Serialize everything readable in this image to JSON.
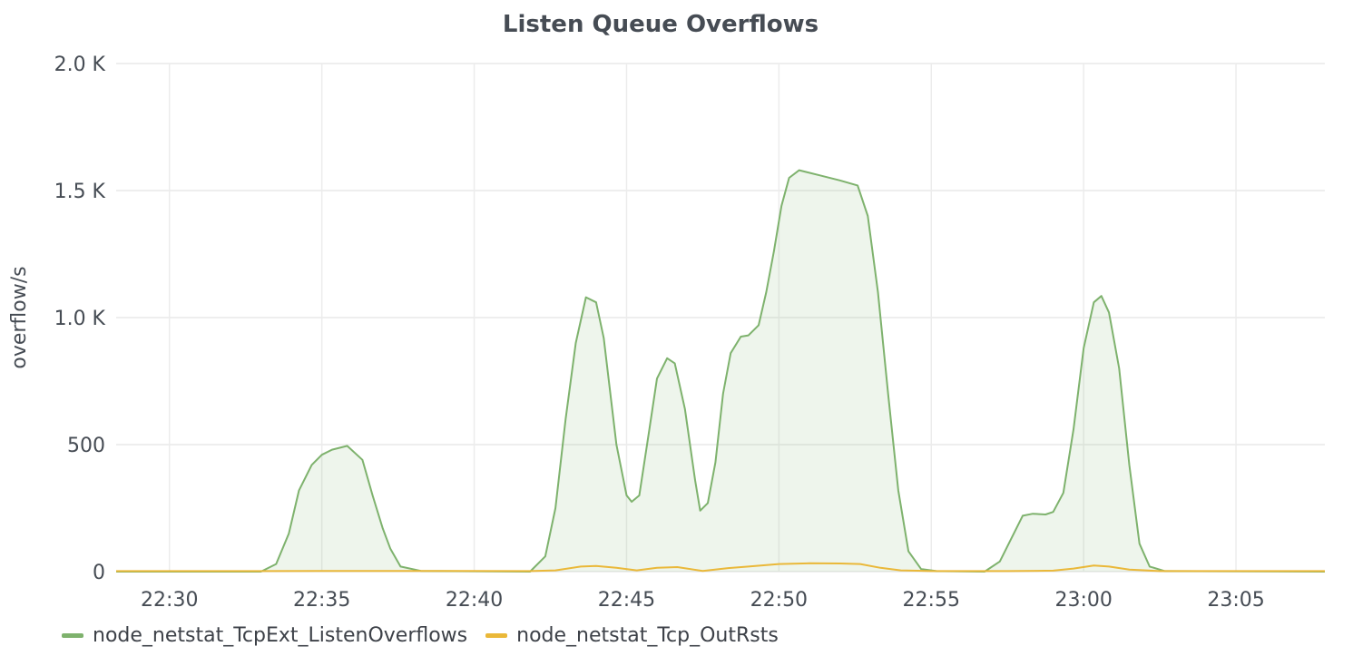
{
  "panel": {
    "title": "Listen Queue Overflows"
  },
  "chart_data": {
    "type": "area",
    "title": "Listen Queue Overflows",
    "xlabel": "",
    "ylabel": "overflow/s",
    "xlim": [
      "22:28:15",
      "23:07:55"
    ],
    "ylim": [
      0,
      2000
    ],
    "yticks": [
      {
        "value": 0,
        "label": "0"
      },
      {
        "value": 500,
        "label": "500"
      },
      {
        "value": 1000,
        "label": "1.0 K"
      },
      {
        "value": 1500,
        "label": "1.5 K"
      },
      {
        "value": 2000,
        "label": "2.0 K"
      }
    ],
    "xticks": [
      "22:30",
      "22:35",
      "22:40",
      "22:45",
      "22:50",
      "22:55",
      "23:00",
      "23:05"
    ],
    "grid": true,
    "legend_position": "bottom-left",
    "series": [
      {
        "name": "node_netstat_TcpExt_ListenOverflows",
        "color": "#7eb26d",
        "fill": true,
        "points": [
          [
            "22:28:15",
            0
          ],
          [
            "22:33:00",
            0
          ],
          [
            "22:33:30",
            30
          ],
          [
            "22:33:55",
            150
          ],
          [
            "22:34:15",
            320
          ],
          [
            "22:34:40",
            420
          ],
          [
            "22:35:00",
            460
          ],
          [
            "22:35:20",
            480
          ],
          [
            "22:35:50",
            495
          ],
          [
            "22:36:20",
            440
          ],
          [
            "22:36:40",
            300
          ],
          [
            "22:37:00",
            170
          ],
          [
            "22:37:15",
            90
          ],
          [
            "22:37:35",
            20
          ],
          [
            "22:38:15",
            3
          ],
          [
            "22:41:50",
            0
          ],
          [
            "22:42:20",
            60
          ],
          [
            "22:42:40",
            250
          ],
          [
            "22:43:00",
            600
          ],
          [
            "22:43:20",
            900
          ],
          [
            "22:43:40",
            1080
          ],
          [
            "22:44:00",
            1060
          ],
          [
            "22:44:15",
            920
          ],
          [
            "22:44:40",
            500
          ],
          [
            "22:45:00",
            300
          ],
          [
            "22:45:10",
            275
          ],
          [
            "22:45:25",
            300
          ],
          [
            "22:45:45",
            560
          ],
          [
            "22:46:00",
            760
          ],
          [
            "22:46:20",
            840
          ],
          [
            "22:46:35",
            820
          ],
          [
            "22:46:55",
            640
          ],
          [
            "22:47:15",
            360
          ],
          [
            "22:47:25",
            240
          ],
          [
            "22:47:40",
            270
          ],
          [
            "22:47:55",
            430
          ],
          [
            "22:48:10",
            700
          ],
          [
            "22:48:25",
            860
          ],
          [
            "22:48:45",
            925
          ],
          [
            "22:49:00",
            930
          ],
          [
            "22:49:20",
            970
          ],
          [
            "22:49:35",
            1100
          ],
          [
            "22:49:50",
            1260
          ],
          [
            "22:50:05",
            1440
          ],
          [
            "22:50:20",
            1550
          ],
          [
            "22:50:40",
            1580
          ],
          [
            "22:51:20",
            1560
          ],
          [
            "22:52:00",
            1540
          ],
          [
            "22:52:35",
            1520
          ],
          [
            "22:52:55",
            1400
          ],
          [
            "22:53:15",
            1100
          ],
          [
            "22:53:35",
            700
          ],
          [
            "22:53:55",
            320
          ],
          [
            "22:54:15",
            80
          ],
          [
            "22:54:40",
            10
          ],
          [
            "22:55:10",
            2
          ],
          [
            "22:56:45",
            0
          ],
          [
            "22:57:15",
            40
          ],
          [
            "22:57:40",
            140
          ],
          [
            "22:58:00",
            220
          ],
          [
            "22:58:20",
            228
          ],
          [
            "22:58:45",
            225
          ],
          [
            "22:59:00",
            235
          ],
          [
            "22:59:20",
            310
          ],
          [
            "22:59:40",
            560
          ],
          [
            "23:00:00",
            880
          ],
          [
            "23:00:20",
            1060
          ],
          [
            "23:00:35",
            1085
          ],
          [
            "23:00:50",
            1020
          ],
          [
            "23:01:10",
            800
          ],
          [
            "23:01:30",
            420
          ],
          [
            "23:01:50",
            110
          ],
          [
            "23:02:10",
            20
          ],
          [
            "23:02:40",
            2
          ],
          [
            "23:07:55",
            0
          ]
        ]
      },
      {
        "name": "node_netstat_Tcp_OutRsts",
        "color": "#eab839",
        "fill": false,
        "points": [
          [
            "22:28:15",
            2
          ],
          [
            "22:33:00",
            2
          ],
          [
            "22:35:00",
            3
          ],
          [
            "22:37:30",
            3
          ],
          [
            "22:41:50",
            2
          ],
          [
            "22:42:40",
            5
          ],
          [
            "22:43:30",
            20
          ],
          [
            "22:44:00",
            22
          ],
          [
            "22:44:40",
            15
          ],
          [
            "22:45:20",
            5
          ],
          [
            "22:46:00",
            15
          ],
          [
            "22:46:40",
            18
          ],
          [
            "22:47:30",
            3
          ],
          [
            "22:48:20",
            14
          ],
          [
            "22:49:00",
            20
          ],
          [
            "22:50:00",
            30
          ],
          [
            "22:51:00",
            33
          ],
          [
            "22:52:00",
            32
          ],
          [
            "22:52:40",
            30
          ],
          [
            "22:53:20",
            15
          ],
          [
            "22:54:00",
            5
          ],
          [
            "22:55:00",
            2
          ],
          [
            "22:57:30",
            2
          ],
          [
            "22:59:00",
            4
          ],
          [
            "22:59:40",
            12
          ],
          [
            "23:00:20",
            24
          ],
          [
            "23:00:50",
            20
          ],
          [
            "23:01:30",
            8
          ],
          [
            "23:02:30",
            2
          ],
          [
            "23:07:55",
            2
          ]
        ]
      }
    ]
  }
}
